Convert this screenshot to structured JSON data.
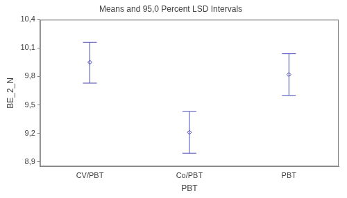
{
  "chart_data": {
    "type": "errorbar",
    "title": "Means and 95,0 Percent LSD Intervals",
    "x_label": "PBT",
    "y_label": "BE_2_N",
    "categories": [
      "CV/PBT",
      "Co/PBT",
      "PBT"
    ],
    "values": [
      9.95,
      9.21,
      9.82
    ],
    "lower": [
      9.73,
      8.99,
      9.6
    ],
    "upper": [
      10.16,
      9.43,
      10.04
    ],
    "color": "#4848b8",
    "marker": "diamond",
    "ylim": [
      8.85,
      10.4
    ],
    "yticks": [
      {
        "value": 8.9,
        "label": "8,9"
      },
      {
        "value": 9.2,
        "label": "9,2"
      },
      {
        "value": 9.5,
        "label": "9,5"
      },
      {
        "value": 9.8,
        "label": "9,8"
      },
      {
        "value": 10.1,
        "label": "10,1"
      },
      {
        "value": 10.4,
        "label": "10,4"
      }
    ],
    "grid": false
  }
}
